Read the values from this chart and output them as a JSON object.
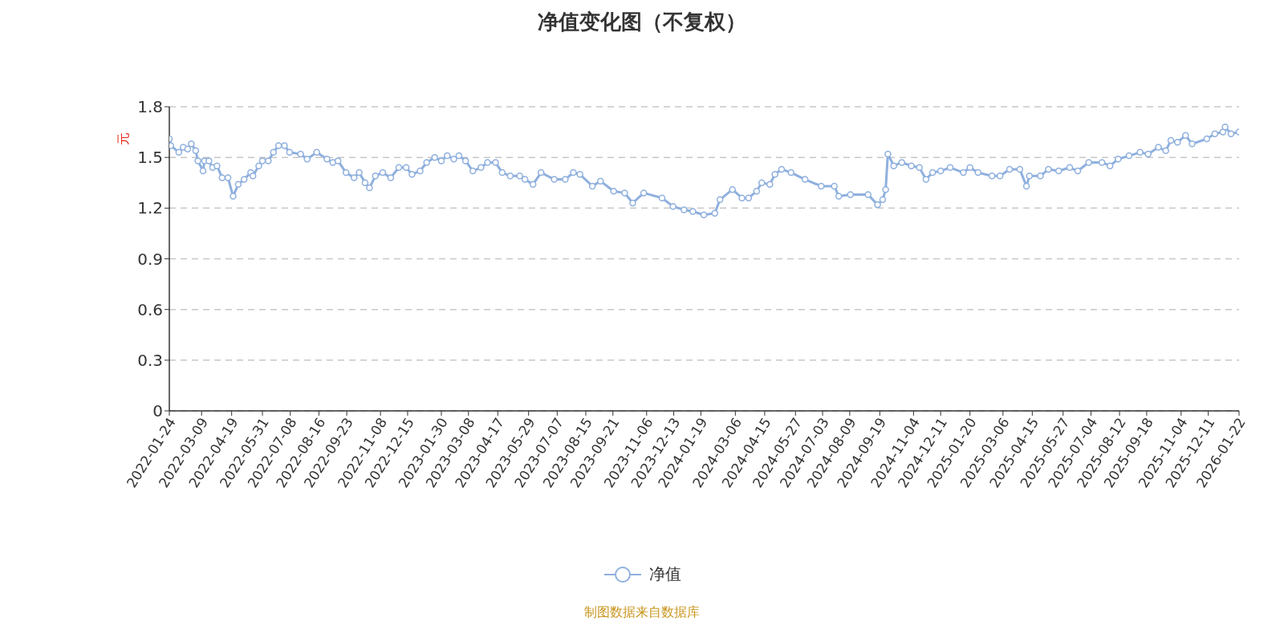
{
  "chart_data": {
    "type": "line",
    "title": "净值变化图（不复权）",
    "ylabel": "元",
    "x": [
      "2022-01-24",
      "2022-01-26",
      "2022-02-06",
      "2022-02-12",
      "2022-02-18",
      "2022-02-23",
      "2022-03-01",
      "2022-03-04",
      "2022-03-11",
      "2022-03-13",
      "2022-03-19",
      "2022-03-24",
      "2022-03-30",
      "2022-04-06",
      "2022-04-14",
      "2022-04-21",
      "2022-04-28",
      "2022-05-06",
      "2022-05-15",
      "2022-05-18",
      "2022-05-26",
      "2022-05-31",
      "2022-06-08",
      "2022-06-15",
      "2022-06-22",
      "2022-06-30",
      "2022-07-07",
      "2022-07-22",
      "2022-07-31",
      "2022-08-13",
      "2022-08-27",
      "2022-09-04",
      "2022-09-11",
      "2022-09-22",
      "2022-10-03",
      "2022-10-10",
      "2022-10-18",
      "2022-10-24",
      "2022-11-01",
      "2022-11-11",
      "2022-11-22",
      "2022-12-03",
      "2022-12-13",
      "2022-12-21",
      "2023-01-01",
      "2023-01-10",
      "2023-01-21",
      "2023-01-30",
      "2023-02-07",
      "2023-02-16",
      "2023-02-23",
      "2023-03-04",
      "2023-03-14",
      "2023-03-25",
      "2023-04-03",
      "2023-04-14",
      "2023-04-23",
      "2023-05-04",
      "2023-05-17",
      "2023-05-24",
      "2023-06-04",
      "2023-06-15",
      "2023-07-03",
      "2023-07-18",
      "2023-07-29",
      "2023-08-07",
      "2023-08-24",
      "2023-09-04",
      "2023-09-22",
      "2023-10-07",
      "2023-10-18",
      "2023-11-02",
      "2023-11-27",
      "2023-12-12",
      "2023-12-27",
      "2024-01-08",
      "2024-01-23",
      "2024-02-07",
      "2024-02-14",
      "2024-03-02",
      "2024-03-15",
      "2024-03-24",
      "2024-04-04",
      "2024-04-11",
      "2024-04-22",
      "2024-04-29",
      "2024-05-08",
      "2024-05-21",
      "2024-06-09",
      "2024-07-01",
      "2024-07-19",
      "2024-07-25",
      "2024-08-10",
      "2024-09-03",
      "2024-09-16",
      "2024-09-23",
      "2024-09-27",
      "2024-09-30",
      "2024-10-08",
      "2024-10-19",
      "2024-11-01",
      "2024-11-12",
      "2024-11-21",
      "2024-11-30",
      "2024-12-11",
      "2024-12-24",
      "2025-01-11",
      "2025-01-20",
      "2025-01-31",
      "2025-02-19",
      "2025-03-02",
      "2025-03-15",
      "2025-03-29",
      "2025-04-07",
      "2025-04-11",
      "2025-04-26",
      "2025-05-07",
      "2025-05-21",
      "2025-06-05",
      "2025-06-16",
      "2025-07-01",
      "2025-07-19",
      "2025-07-30",
      "2025-08-10",
      "2025-08-25",
      "2025-09-09",
      "2025-09-20",
      "2025-10-04",
      "2025-10-14",
      "2025-10-21",
      "2025-10-30",
      "2025-11-10",
      "2025-11-19",
      "2025-12-09",
      "2025-12-20",
      "2025-12-31",
      "2026-01-03",
      "2026-01-11",
      "2026-01-22"
    ],
    "series": [
      {
        "name": "净值",
        "color": "#8fb0de",
        "values": [
          1.61,
          1.57,
          1.53,
          1.56,
          1.55,
          1.58,
          1.54,
          1.48,
          1.42,
          1.48,
          1.48,
          1.44,
          1.45,
          1.38,
          1.38,
          1.27,
          1.34,
          1.37,
          1.41,
          1.39,
          1.45,
          1.48,
          1.48,
          1.53,
          1.57,
          1.57,
          1.53,
          1.52,
          1.49,
          1.53,
          1.49,
          1.47,
          1.48,
          1.41,
          1.38,
          1.41,
          1.35,
          1.32,
          1.39,
          1.41,
          1.38,
          1.44,
          1.44,
          1.4,
          1.42,
          1.47,
          1.5,
          1.48,
          1.51,
          1.49,
          1.51,
          1.48,
          1.42,
          1.44,
          1.47,
          1.47,
          1.41,
          1.39,
          1.39,
          1.37,
          1.34,
          1.41,
          1.37,
          1.37,
          1.41,
          1.4,
          1.33,
          1.36,
          1.3,
          1.29,
          1.23,
          1.29,
          1.26,
          1.21,
          1.19,
          1.18,
          1.16,
          1.17,
          1.25,
          1.31,
          1.26,
          1.26,
          1.3,
          1.35,
          1.34,
          1.4,
          1.43,
          1.41,
          1.37,
          1.33,
          1.33,
          1.27,
          1.28,
          1.28,
          1.22,
          1.25,
          1.31,
          1.52,
          1.45,
          1.47,
          1.45,
          1.44,
          1.37,
          1.41,
          1.42,
          1.44,
          1.41,
          1.44,
          1.41,
          1.39,
          1.39,
          1.43,
          1.43,
          1.33,
          1.39,
          1.39,
          1.43,
          1.42,
          1.44,
          1.42,
          1.47,
          1.47,
          1.45,
          1.49,
          1.51,
          1.53,
          1.52,
          1.56,
          1.54,
          1.6,
          1.59,
          1.63,
          1.58,
          1.61,
          1.64,
          1.65,
          1.68,
          1.64,
          1.65
        ]
      }
    ],
    "xlim": [
      "2022-01-24",
      "2026-01-22"
    ],
    "xticks": [
      "2022-01-24",
      "2022-03-09",
      "2022-04-19",
      "2022-05-31",
      "2022-07-08",
      "2022-08-16",
      "2022-09-23",
      "2022-11-08",
      "2022-12-15",
      "2023-01-30",
      "2023-03-08",
      "2023-04-17",
      "2023-05-29",
      "2023-07-07",
      "2023-08-15",
      "2023-09-21",
      "2023-11-06",
      "2023-12-13",
      "2024-01-19",
      "2024-03-06",
      "2024-04-15",
      "2024-05-27",
      "2024-07-03",
      "2024-08-09",
      "2024-09-19",
      "2024-11-04",
      "2024-12-11",
      "2025-01-20",
      "2025-03-06",
      "2025-04-15",
      "2025-05-27",
      "2025-07-04",
      "2025-08-12",
      "2025-09-18",
      "2025-11-04",
      "2025-12-11",
      "2026-01-22"
    ],
    "ylim": [
      0,
      1.8
    ],
    "yticks": [
      0,
      0.3,
      0.6,
      0.9,
      1.2,
      1.5,
      1.8
    ],
    "grid": "y",
    "legend": "bottom",
    "marker": "circle",
    "line_style": "solid",
    "annotations": [
      "制图数据来自数据库"
    ]
  }
}
